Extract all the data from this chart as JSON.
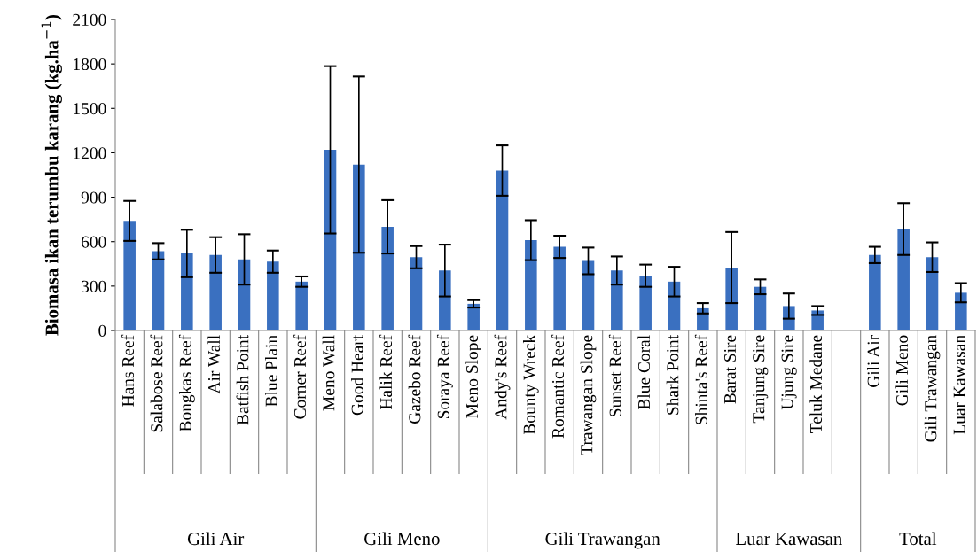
{
  "chart_data": {
    "type": "bar",
    "ylabel": "Biomasa ikan terumbu karang (kg.ha$^{−1}$)",
    "categories": [
      "Hans Reef",
      "Salabose Reef",
      "Bongkas Reef",
      "Air Wall",
      "Batfish Point",
      "Blue Plain",
      "Corner Reef",
      "Meno Wall",
      "Good Heart",
      "Halik Reef",
      "Gazebo Reef",
      "Soraya Reef",
      "Meno Slope",
      "Andy's Reef",
      "Bounty Wreck",
      "Romantic Reef",
      "Trawangan Slope",
      "Sunset Reef",
      "Blue Coral",
      "Shark Point",
      "Shinta's Reef",
      "Barat Sire",
      "Tanjung Sire",
      "Ujung Sire",
      "Teluk Medane",
      null,
      "Gili Air",
      "Gili Meno",
      "Gili Trawangan",
      "Luar Kawasan"
    ],
    "values": [
      740,
      535,
      520,
      510,
      480,
      465,
      330,
      1220,
      1120,
      700,
      495,
      405,
      180,
      1080,
      610,
      565,
      470,
      405,
      370,
      330,
      150,
      425,
      295,
      165,
      135,
      null,
      510,
      685,
      495,
      255
    ],
    "errors": [
      135,
      55,
      160,
      120,
      170,
      75,
      35,
      565,
      595,
      180,
      75,
      175,
      25,
      170,
      135,
      75,
      90,
      95,
      75,
      100,
      35,
      240,
      50,
      85,
      30,
      null,
      55,
      175,
      100,
      65
    ],
    "color": "#3a70c0",
    "ylim": [
      0,
      2100
    ],
    "yticks": [
      0,
      300,
      600,
      900,
      1200,
      1500,
      1800,
      2100
    ],
    "grid": false,
    "annotations": [
      "Gili Air",
      "Gili Meno",
      "Gili Trawangan",
      "Luar Kawasan",
      "Total"
    ]
  }
}
